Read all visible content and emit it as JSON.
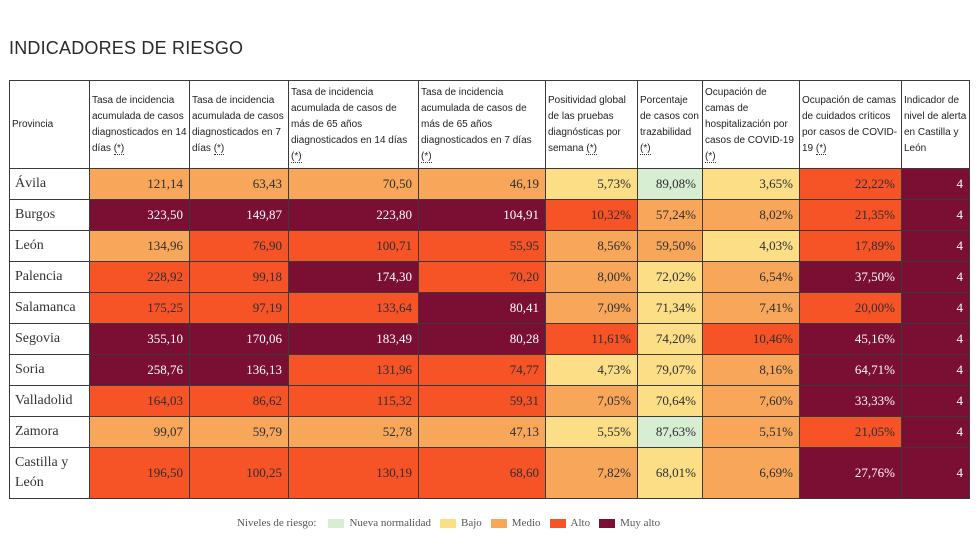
{
  "title": "INDICADORES DE RIESGO",
  "headers": [
    {
      "text": "Provincia",
      "ref": ""
    },
    {
      "text": "Tasa de incidencia acumulada de casos diagnosticados en 14 días",
      "ref": "(*)"
    },
    {
      "text": "Tasa de incidencia acumulada de casos diagnosticados en 7 días",
      "ref": "(*)"
    },
    {
      "text": "Tasa de incidencia acumulada de casos de más de 65 años diagnosticados en 14 días",
      "ref": "(*)"
    },
    {
      "text": "Tasa de incidencia acumulada de casos de más de 65 años diagnosticados en 7 días",
      "ref": "(*)"
    },
    {
      "text": "Positividad global de las pruebas diagnósticas por semana",
      "ref": "(*)"
    },
    {
      "text": "Porcentaje de casos con trazabilidad",
      "ref": "(*)"
    },
    {
      "text": "Ocupación de camas de hospitalización por casos de COVID-19",
      "ref": "(*)"
    },
    {
      "text": "Ocupación de camas de cuidados críticos por casos de COVID-19",
      "ref": "(*)"
    },
    {
      "text": "Indicador de nivel de alerta en Castilla y León",
      "ref": ""
    }
  ],
  "rows": [
    {
      "provincia": "Ávila",
      "cells": [
        {
          "value": "121,14",
          "level": "medio"
        },
        {
          "value": "63,43",
          "level": "medio"
        },
        {
          "value": "70,50",
          "level": "medio"
        },
        {
          "value": "46,19",
          "level": "medio"
        },
        {
          "value": "5,73%",
          "level": "bajo"
        },
        {
          "value": "89,08%",
          "level": "nueva"
        },
        {
          "value": "3,65%",
          "level": "bajo"
        },
        {
          "value": "22,22%",
          "level": "alto"
        },
        {
          "value": "4",
          "level": "muyalto"
        }
      ]
    },
    {
      "provincia": "Burgos",
      "cells": [
        {
          "value": "323,50",
          "level": "muyalto"
        },
        {
          "value": "149,87",
          "level": "muyalto"
        },
        {
          "value": "223,80",
          "level": "muyalto"
        },
        {
          "value": "104,91",
          "level": "muyalto"
        },
        {
          "value": "10,32%",
          "level": "alto"
        },
        {
          "value": "57,24%",
          "level": "medio"
        },
        {
          "value": "8,02%",
          "level": "medio"
        },
        {
          "value": "21,35%",
          "level": "alto"
        },
        {
          "value": "4",
          "level": "muyalto"
        }
      ]
    },
    {
      "provincia": "León",
      "cells": [
        {
          "value": "134,96",
          "level": "medio"
        },
        {
          "value": "76,90",
          "level": "alto"
        },
        {
          "value": "100,71",
          "level": "alto"
        },
        {
          "value": "55,95",
          "level": "alto"
        },
        {
          "value": "8,56%",
          "level": "medio"
        },
        {
          "value": "59,50%",
          "level": "medio"
        },
        {
          "value": "4,03%",
          "level": "bajo"
        },
        {
          "value": "17,89%",
          "level": "alto"
        },
        {
          "value": "4",
          "level": "muyalto"
        }
      ]
    },
    {
      "provincia": "Palencia",
      "cells": [
        {
          "value": "228,92",
          "level": "alto"
        },
        {
          "value": "99,18",
          "level": "alto"
        },
        {
          "value": "174,30",
          "level": "muyalto"
        },
        {
          "value": "70,20",
          "level": "alto"
        },
        {
          "value": "8,00%",
          "level": "medio"
        },
        {
          "value": "72,02%",
          "level": "bajo"
        },
        {
          "value": "6,54%",
          "level": "medio"
        },
        {
          "value": "37,50%",
          "level": "muyalto"
        },
        {
          "value": "4",
          "level": "muyalto"
        }
      ]
    },
    {
      "provincia": "Salamanca",
      "cells": [
        {
          "value": "175,25",
          "level": "alto"
        },
        {
          "value": "97,19",
          "level": "alto"
        },
        {
          "value": "133,64",
          "level": "alto"
        },
        {
          "value": "80,41",
          "level": "muyalto"
        },
        {
          "value": "7,09%",
          "level": "medio"
        },
        {
          "value": "71,34%",
          "level": "bajo"
        },
        {
          "value": "7,41%",
          "level": "medio"
        },
        {
          "value": "20,00%",
          "level": "alto"
        },
        {
          "value": "4",
          "level": "muyalto"
        }
      ]
    },
    {
      "provincia": "Segovia",
      "cells": [
        {
          "value": "355,10",
          "level": "muyalto"
        },
        {
          "value": "170,06",
          "level": "muyalto"
        },
        {
          "value": "183,49",
          "level": "muyalto"
        },
        {
          "value": "80,28",
          "level": "muyalto"
        },
        {
          "value": "11,61%",
          "level": "alto"
        },
        {
          "value": "74,20%",
          "level": "bajo"
        },
        {
          "value": "10,46%",
          "level": "alto"
        },
        {
          "value": "45,16%",
          "level": "muyalto"
        },
        {
          "value": "4",
          "level": "muyalto"
        }
      ]
    },
    {
      "provincia": "Soria",
      "cells": [
        {
          "value": "258,76",
          "level": "muyalto"
        },
        {
          "value": "136,13",
          "level": "muyalto"
        },
        {
          "value": "131,96",
          "level": "alto"
        },
        {
          "value": "74,77",
          "level": "alto"
        },
        {
          "value": "4,73%",
          "level": "bajo"
        },
        {
          "value": "79,07%",
          "level": "bajo"
        },
        {
          "value": "8,16%",
          "level": "medio"
        },
        {
          "value": "64,71%",
          "level": "muyalto"
        },
        {
          "value": "4",
          "level": "muyalto"
        }
      ]
    },
    {
      "provincia": "Valladolid",
      "cells": [
        {
          "value": "164,03",
          "level": "alto"
        },
        {
          "value": "86,62",
          "level": "alto"
        },
        {
          "value": "115,32",
          "level": "alto"
        },
        {
          "value": "59,31",
          "level": "alto"
        },
        {
          "value": "7,05%",
          "level": "medio"
        },
        {
          "value": "70,64%",
          "level": "bajo"
        },
        {
          "value": "7,60%",
          "level": "medio"
        },
        {
          "value": "33,33%",
          "level": "muyalto"
        },
        {
          "value": "4",
          "level": "muyalto"
        }
      ]
    },
    {
      "provincia": "Zamora",
      "cells": [
        {
          "value": "99,07",
          "level": "medio"
        },
        {
          "value": "59,79",
          "level": "medio"
        },
        {
          "value": "52,78",
          "level": "medio"
        },
        {
          "value": "47,13",
          "level": "medio"
        },
        {
          "value": "5,55%",
          "level": "bajo"
        },
        {
          "value": "87,63%",
          "level": "nueva"
        },
        {
          "value": "5,51%",
          "level": "medio"
        },
        {
          "value": "21,05%",
          "level": "alto"
        },
        {
          "value": "4",
          "level": "muyalto"
        }
      ]
    },
    {
      "provincia": "Castilla y León",
      "cells": [
        {
          "value": "196,50",
          "level": "alto"
        },
        {
          "value": "100,25",
          "level": "alto"
        },
        {
          "value": "130,19",
          "level": "alto"
        },
        {
          "value": "68,60",
          "level": "alto"
        },
        {
          "value": "7,82%",
          "level": "medio"
        },
        {
          "value": "68,01%",
          "level": "bajo"
        },
        {
          "value": "6,69%",
          "level": "medio"
        },
        {
          "value": "27,76%",
          "level": "muyalto"
        },
        {
          "value": "4",
          "level": "muyalto"
        }
      ]
    }
  ],
  "legend": {
    "label": "Niveles de riesgo:",
    "items": [
      {
        "key": "nueva",
        "label": "Nueva normalidad",
        "color": "#d8eed2"
      },
      {
        "key": "bajo",
        "label": "Bajo",
        "color": "#fbde86"
      },
      {
        "key": "medio",
        "label": "Medio",
        "color": "#f8a75a"
      },
      {
        "key": "alto",
        "label": "Alto",
        "color": "#f65326"
      },
      {
        "key": "muyalto",
        "label": "Muy alto",
        "color": "#7a0f33"
      }
    ]
  }
}
